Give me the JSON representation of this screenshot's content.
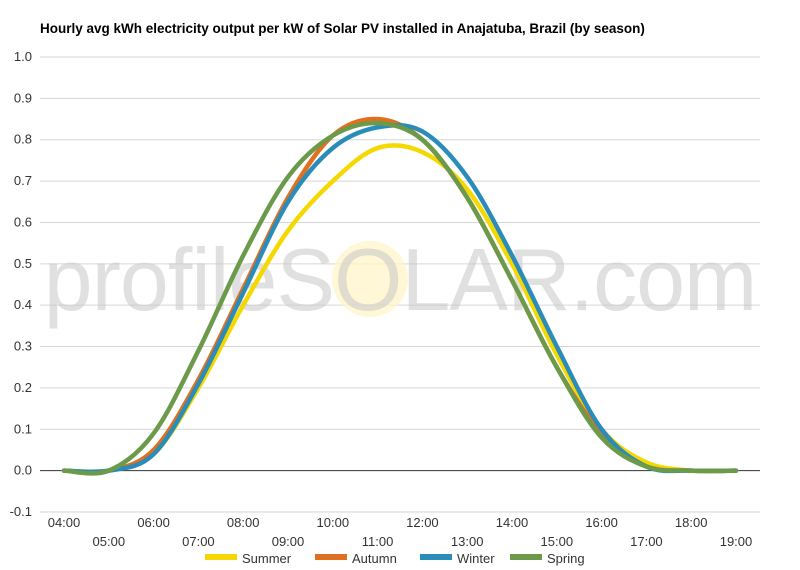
{
  "chart_data": {
    "type": "line",
    "title": "Hourly avg kWh electricity output per kW of Solar PV installed in Anajatuba, Brazil (by season)",
    "xlabel": "",
    "ylabel": "",
    "ylim": [
      -0.1,
      1.0
    ],
    "yticks": [
      "1.0",
      "0.9",
      "0.8",
      "0.7",
      "0.6",
      "0.5",
      "0.4",
      "0.3",
      "0.2",
      "0.1",
      "0.0",
      "-0.1"
    ],
    "xticks": [
      "04:00",
      "05:00",
      "06:00",
      "07:00",
      "08:00",
      "09:00",
      "10:00",
      "11:00",
      "12:00",
      "13:00",
      "14:00",
      "15:00",
      "16:00",
      "17:00",
      "18:00",
      "19:00"
    ],
    "x": [
      "04:00",
      "05:00",
      "06:00",
      "07:00",
      "08:00",
      "09:00",
      "10:00",
      "11:00",
      "12:00",
      "13:00",
      "14:00",
      "15:00",
      "16:00",
      "17:00",
      "18:00",
      "19:00"
    ],
    "grid": true,
    "legend_position": "bottom",
    "watermark": "profileSOLAR.com",
    "series": [
      {
        "name": "Summer",
        "color": "#f5d800",
        "values": [
          0,
          0,
          0.04,
          0.2,
          0.4,
          0.58,
          0.7,
          0.78,
          0.77,
          0.68,
          0.5,
          0.28,
          0.1,
          0.02,
          0,
          0
        ]
      },
      {
        "name": "Autumn",
        "color": "#e07020",
        "values": [
          0,
          0,
          0.05,
          0.22,
          0.44,
          0.66,
          0.81,
          0.85,
          0.8,
          0.66,
          0.46,
          0.25,
          0.09,
          0.01,
          0,
          0
        ]
      },
      {
        "name": "Winter",
        "color": "#2a8cb8",
        "values": [
          0,
          0,
          0.04,
          0.21,
          0.43,
          0.65,
          0.78,
          0.83,
          0.82,
          0.71,
          0.52,
          0.3,
          0.1,
          0.01,
          0,
          0
        ]
      },
      {
        "name": "Spring",
        "color": "#6a9a4a",
        "values": [
          0,
          0,
          0.09,
          0.29,
          0.52,
          0.71,
          0.81,
          0.84,
          0.8,
          0.66,
          0.46,
          0.25,
          0.08,
          0.01,
          0,
          0
        ]
      }
    ]
  }
}
